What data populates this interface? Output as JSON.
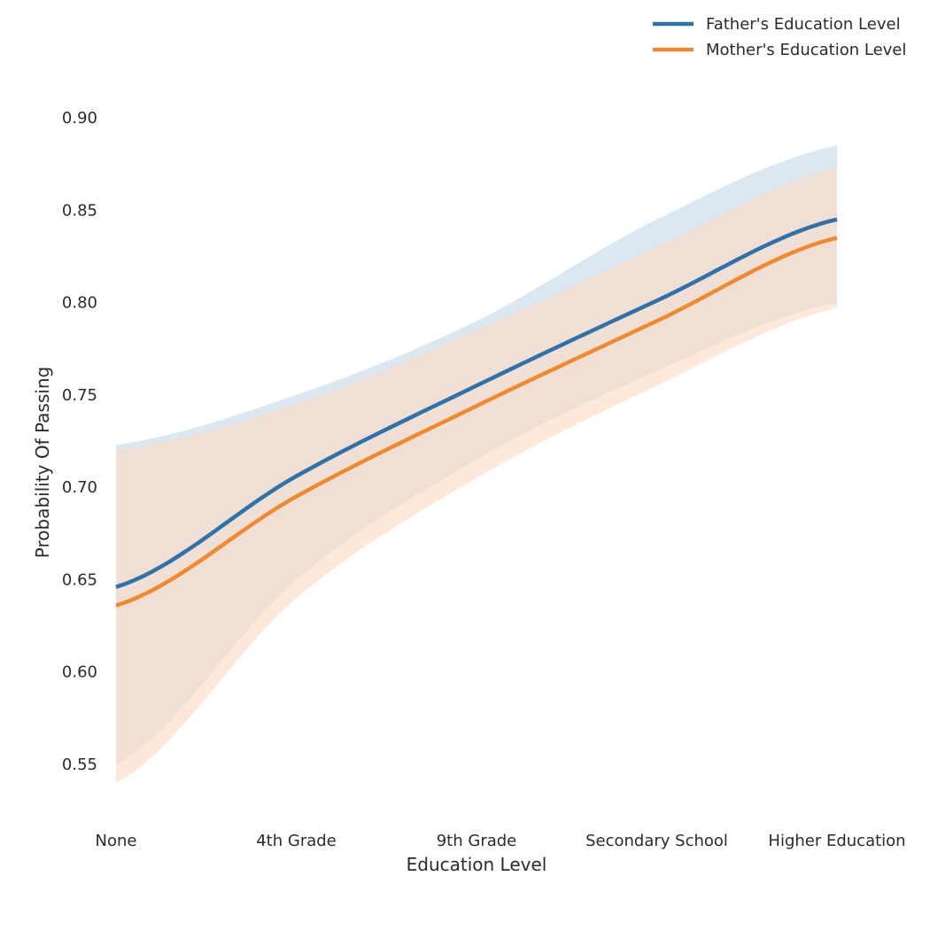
{
  "chart_data": {
    "type": "line",
    "xlabel": "Education Level",
    "ylabel": "Probability Of Passing",
    "categories": [
      "None",
      "4th Grade",
      "9th Grade",
      "Secondary School",
      "Higher Education"
    ],
    "x": [
      0,
      1,
      2,
      3,
      4
    ],
    "yticks": [
      "0.55",
      "0.60",
      "0.65",
      "0.70",
      "0.75",
      "0.80",
      "0.85",
      "0.90"
    ],
    "ylim": [
      0.53,
      0.915
    ],
    "grid": false,
    "legend": "top-right",
    "series": [
      {
        "name": "Father's Education Level",
        "color": "#2f72aa",
        "band_color": "#c5d8e8",
        "values": [
          0.646,
          0.706,
          0.755,
          0.801,
          0.845
        ],
        "upper": [
          0.723,
          0.75,
          0.79,
          0.845,
          0.885
        ],
        "lower": [
          0.55,
          0.65,
          0.715,
          0.763,
          0.8
        ]
      },
      {
        "name": "Mother's Education Level",
        "color": "#f08a2e",
        "band_color": "#fcd9c2",
        "values": [
          0.636,
          0.695,
          0.744,
          0.79,
          0.835
        ],
        "upper": [
          0.72,
          0.745,
          0.785,
          0.83,
          0.873
        ],
        "lower": [
          0.54,
          0.64,
          0.705,
          0.755,
          0.797
        ]
      }
    ]
  }
}
